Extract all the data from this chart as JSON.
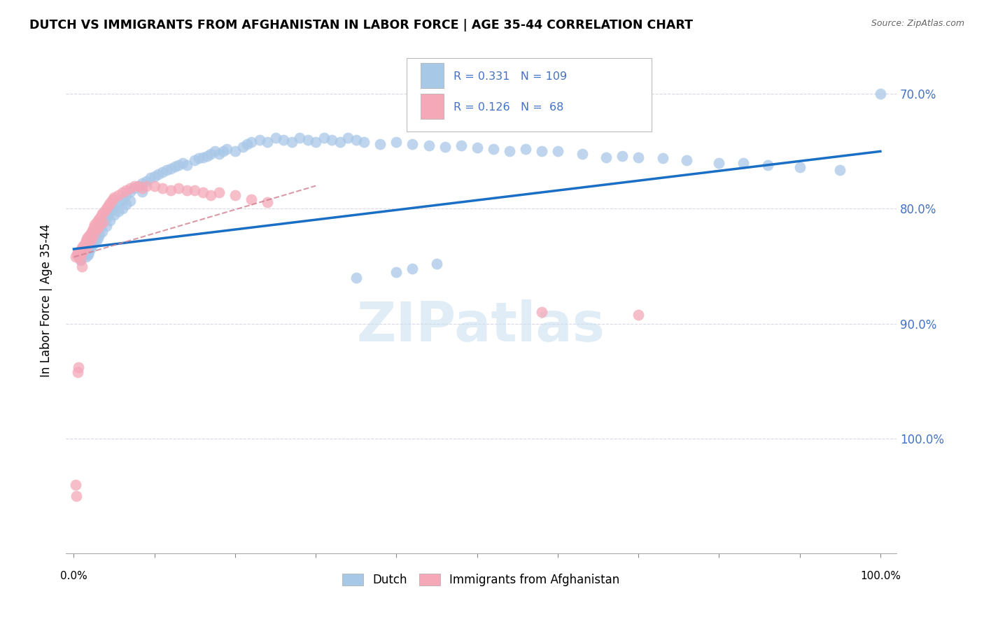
{
  "title": "DUTCH VS IMMIGRANTS FROM AFGHANISTAN IN LABOR FORCE | AGE 35-44 CORRELATION CHART",
  "source": "Source: ZipAtlas.com",
  "ylabel": "In Labor Force | Age 35-44",
  "dutch_color": "#a8c8e8",
  "afg_color": "#f4a8b8",
  "dutch_line_color": "#1a6fc4",
  "afg_line_color": "#d08090",
  "watermark_color": "#cce0f0",
  "right_tick_color": "#4472c4",
  "grid_color": "#d8d8e8",
  "dutch_x": [
    0.005,
    0.008,
    0.01,
    0.012,
    0.015,
    0.015,
    0.018,
    0.018,
    0.02,
    0.02,
    0.022,
    0.022,
    0.025,
    0.025,
    0.028,
    0.028,
    0.03,
    0.03,
    0.032,
    0.032,
    0.035,
    0.035,
    0.038,
    0.04,
    0.04,
    0.042,
    0.045,
    0.045,
    0.048,
    0.05,
    0.05,
    0.055,
    0.055,
    0.06,
    0.06,
    0.065,
    0.065,
    0.07,
    0.07,
    0.075,
    0.08,
    0.085,
    0.085,
    0.09,
    0.095,
    0.1,
    0.105,
    0.11,
    0.115,
    0.12,
    0.125,
    0.13,
    0.135,
    0.14,
    0.15,
    0.155,
    0.16,
    0.165,
    0.17,
    0.175,
    0.18,
    0.185,
    0.19,
    0.2,
    0.21,
    0.215,
    0.22,
    0.23,
    0.24,
    0.25,
    0.26,
    0.27,
    0.28,
    0.29,
    0.3,
    0.31,
    0.32,
    0.33,
    0.34,
    0.35,
    0.36,
    0.38,
    0.4,
    0.42,
    0.44,
    0.46,
    0.48,
    0.5,
    0.52,
    0.54,
    0.56,
    0.58,
    0.6,
    0.63,
    0.66,
    0.68,
    0.7,
    0.73,
    0.76,
    0.8,
    0.83,
    0.86,
    0.9,
    0.95,
    1.0,
    0.35,
    0.4,
    0.42,
    0.45
  ],
  "dutch_y": [
    0.862,
    0.855,
    0.858,
    0.86,
    0.862,
    0.858,
    0.86,
    0.862,
    0.87,
    0.865,
    0.875,
    0.868,
    0.878,
    0.87,
    0.88,
    0.872,
    0.882,
    0.875,
    0.885,
    0.878,
    0.888,
    0.88,
    0.89,
    0.892,
    0.885,
    0.895,
    0.898,
    0.89,
    0.9,
    0.903,
    0.895,
    0.905,
    0.898,
    0.908,
    0.9,
    0.912,
    0.904,
    0.915,
    0.907,
    0.918,
    0.92,
    0.922,
    0.915,
    0.924,
    0.927,
    0.928,
    0.93,
    0.932,
    0.934,
    0.935,
    0.937,
    0.938,
    0.94,
    0.938,
    0.942,
    0.944,
    0.945,
    0.946,
    0.948,
    0.95,
    0.948,
    0.95,
    0.952,
    0.95,
    0.954,
    0.956,
    0.958,
    0.96,
    0.958,
    0.962,
    0.96,
    0.958,
    0.962,
    0.96,
    0.958,
    0.962,
    0.96,
    0.958,
    0.962,
    0.96,
    0.958,
    0.956,
    0.958,
    0.956,
    0.955,
    0.954,
    0.955,
    0.953,
    0.952,
    0.95,
    0.952,
    0.95,
    0.95,
    0.948,
    0.945,
    0.946,
    0.945,
    0.944,
    0.942,
    0.94,
    0.94,
    0.938,
    0.936,
    0.934,
    1.0,
    0.84,
    0.845,
    0.848,
    0.852
  ],
  "afg_x": [
    0.002,
    0.004,
    0.005,
    0.006,
    0.008,
    0.008,
    0.01,
    0.01,
    0.012,
    0.012,
    0.014,
    0.015,
    0.015,
    0.016,
    0.018,
    0.018,
    0.02,
    0.02,
    0.022,
    0.022,
    0.024,
    0.025,
    0.025,
    0.026,
    0.028,
    0.028,
    0.03,
    0.03,
    0.032,
    0.032,
    0.034,
    0.035,
    0.036,
    0.038,
    0.04,
    0.042,
    0.044,
    0.046,
    0.048,
    0.05,
    0.055,
    0.06,
    0.065,
    0.07,
    0.075,
    0.08,
    0.085,
    0.09,
    0.1,
    0.11,
    0.12,
    0.13,
    0.14,
    0.15,
    0.16,
    0.17,
    0.18,
    0.2,
    0.22,
    0.24,
    0.58,
    0.7,
    0.002,
    0.003,
    0.005,
    0.006,
    0.008,
    0.01
  ],
  "afg_y": [
    0.858,
    0.86,
    0.862,
    0.858,
    0.864,
    0.86,
    0.866,
    0.862,
    0.868,
    0.864,
    0.87,
    0.872,
    0.866,
    0.874,
    0.876,
    0.87,
    0.878,
    0.872,
    0.88,
    0.874,
    0.882,
    0.884,
    0.878,
    0.886,
    0.888,
    0.882,
    0.89,
    0.884,
    0.892,
    0.886,
    0.894,
    0.896,
    0.888,
    0.898,
    0.9,
    0.902,
    0.904,
    0.906,
    0.908,
    0.91,
    0.912,
    0.914,
    0.916,
    0.918,
    0.92,
    0.92,
    0.918,
    0.92,
    0.92,
    0.918,
    0.916,
    0.918,
    0.916,
    0.916,
    0.914,
    0.912,
    0.914,
    0.912,
    0.908,
    0.906,
    0.81,
    0.808,
    0.66,
    0.65,
    0.758,
    0.762,
    0.856,
    0.85
  ],
  "ylim_min": 0.6,
  "ylim_max": 1.04,
  "xlim_min": -0.01,
  "xlim_max": 1.02,
  "yticks": [
    0.7,
    0.8,
    0.9,
    1.0
  ],
  "ytick_labels": [
    "70.0%",
    "80.0%",
    "90.0%",
    "100.0%"
  ],
  "xtick_left_label": "0.0%",
  "xtick_right_label": "100.0%"
}
